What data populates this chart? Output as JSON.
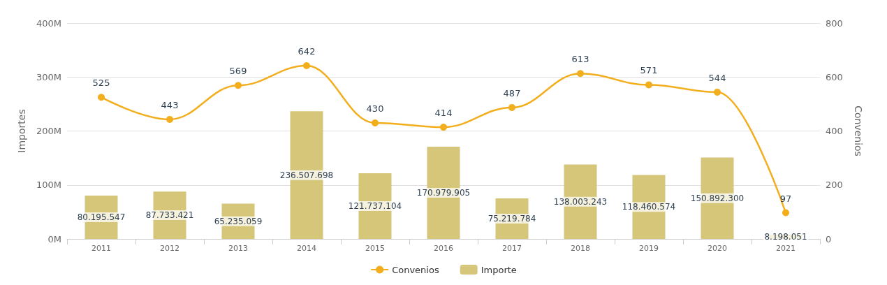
{
  "chart_data": {
    "type": "bar",
    "ylabel": "Importes",
    "y2label": "Convenios",
    "categories": [
      "2011",
      "2012",
      "2013",
      "2014",
      "2015",
      "2016",
      "2017",
      "2018",
      "2019",
      "2020",
      "2021"
    ],
    "series": [
      {
        "name": "Convenios",
        "type": "line",
        "axis": "y2",
        "color": "#f2ae1c",
        "values": [
          525,
          443,
          569,
          642,
          430,
          414,
          487,
          613,
          571,
          544,
          97
        ],
        "value_labels": [
          "525",
          "443",
          "569",
          "642",
          "430",
          "414",
          "487",
          "613",
          "571",
          "544",
          "97"
        ]
      },
      {
        "name": "Importe",
        "color": "#d5c67a",
        "values": [
          80195547,
          87733421,
          65235059,
          236507698,
          121737104,
          170979905,
          75219784,
          138003243,
          118460574,
          150892300,
          8198051
        ],
        "value_labels": [
          "80.195.547",
          "87.733.421",
          "65.235.059",
          "236.507.698",
          "121.737.104",
          "170.979.905",
          "75.219.784",
          "138.003.243",
          "118.460.574",
          "150.892.300",
          "8.198.051"
        ]
      }
    ],
    "ylim": [
      0,
      400000000
    ],
    "yticks": [
      {
        "value": 0,
        "label": "0M"
      },
      {
        "value": 100000000,
        "label": "100M"
      },
      {
        "value": 200000000,
        "label": "200M"
      },
      {
        "value": 300000000,
        "label": "300M"
      },
      {
        "value": 400000000,
        "label": "400M"
      }
    ],
    "y2lim": [
      0,
      800
    ],
    "y2ticks": [
      0,
      200,
      400,
      600,
      800
    ],
    "grid": "y",
    "legend": "bottom",
    "marker": "circle"
  }
}
